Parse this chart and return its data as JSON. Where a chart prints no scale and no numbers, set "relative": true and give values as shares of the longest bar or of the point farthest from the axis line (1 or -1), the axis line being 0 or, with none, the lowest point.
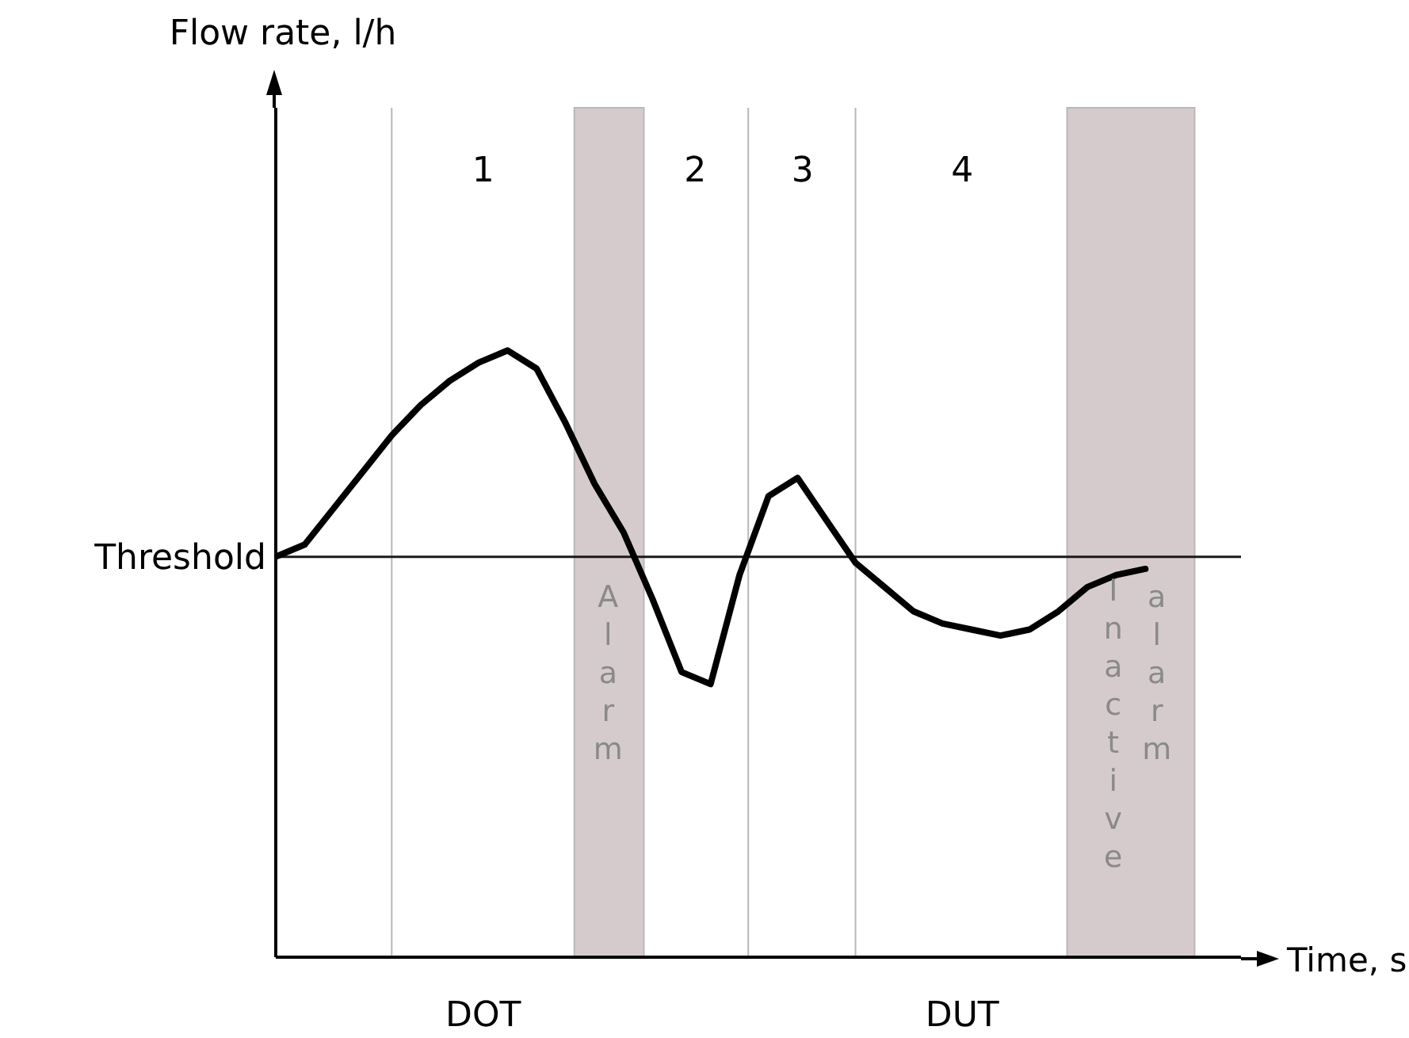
{
  "chart_data": {
    "type": "line",
    "xlabel": "Time, s",
    "relative": true,
    "tick_labels": false,
    "marker": "none",
    "line_style": "solid",
    "categories": [
      null,
      null,
      null,
      null,
      null,
      null,
      null,
      null,
      null,
      null,
      null,
      null,
      null,
      null,
      null,
      null,
      null,
      null,
      null,
      null,
      null,
      null,
      null,
      null,
      null,
      null,
      null,
      null,
      null,
      null,
      null,
      null,
      null,
      null
    ],
    "series": [
      {
        "color": "#000000",
        "values": [
          0.66,
          0.68,
          0.74,
          0.8,
          0.86,
          0.91,
          0.95,
          0.98,
          1.0,
          0.97,
          0.88,
          0.78,
          0.7,
          0.59,
          0.47,
          0.45,
          0.63,
          0.76,
          0.79,
          0.72,
          0.65,
          0.61,
          0.57,
          0.55,
          0.54,
          0.53,
          0.54,
          0.57,
          0.61,
          0.63,
          0.64,
          null,
          null,
          null
        ]
      }
    ],
    "ref_lines": [
      {
        "axis": "y",
        "value": 0.66,
        "label": "Threshold",
        "color": "#1a1a1a"
      }
    ],
    "annotations": [
      "1",
      "2",
      "3",
      "4",
      "DOT",
      "DUT",
      "Alarm",
      "Inactive",
      "alarm",
      "Flow rate, l/h"
    ]
  }
}
